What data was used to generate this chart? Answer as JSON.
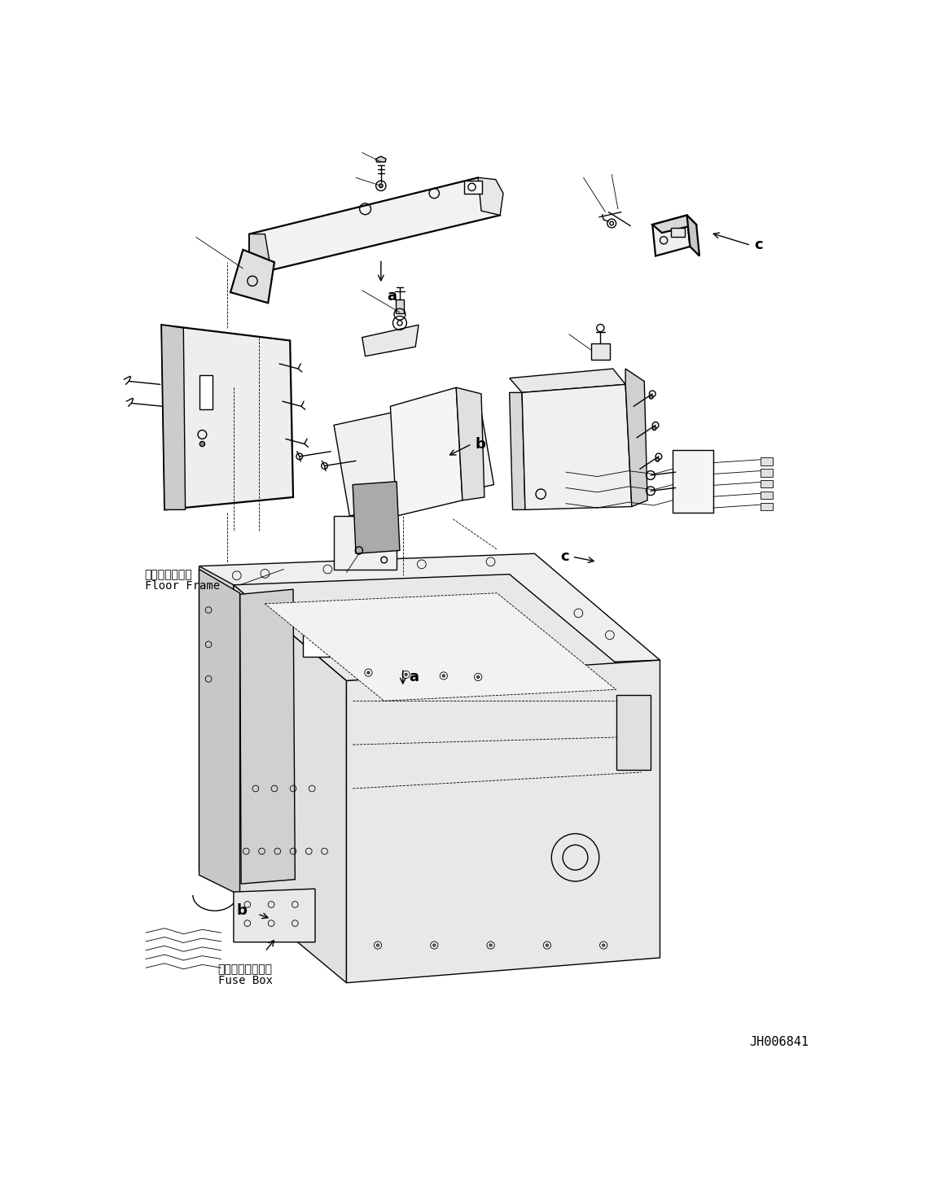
{
  "fig_width": 11.63,
  "fig_height": 14.66,
  "dpi": 100,
  "bg_color": "#ffffff",
  "part_id": "JH006841",
  "label_floor_frame_jp": "フロアフレーム",
  "label_floor_frame_en": "Floor Frame",
  "label_fuse_box_jp": "フューズボックス",
  "label_fuse_box_en": "Fuse Box",
  "label_a": "a",
  "label_b": "b",
  "label_c": "c",
  "line_color": "#000000",
  "lw": 1.0,
  "tlw": 0.6,
  "thk": 1.6,
  "fs_label": 13,
  "fs_text": 10,
  "fs_id": 11
}
